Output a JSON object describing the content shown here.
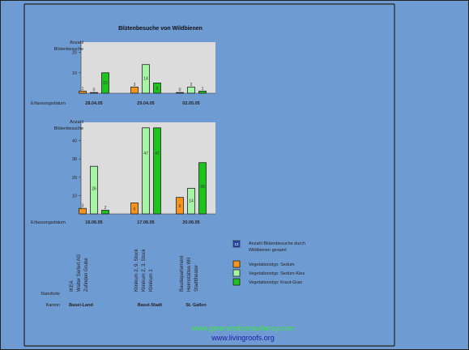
{
  "title": "Blütenbesuche von Wildbienen",
  "ylabel_top": "Anzahl\nBlütenbesuche",
  "ylabel_bottom": "Anzahl\nBlütenbesuche",
  "xlabel_prefix": "Erfassungsdatum",
  "standorte_label": "Standorte",
  "kanton_label": "Kanton",
  "kantons": [
    "Basel-Land",
    "Basel-Stadt",
    "St. Gallen"
  ],
  "standorte": [
    [
      "IKEA",
      "Walter Seifert AG",
      "Zufinden Grube"
    ],
    [
      "Klinikum 2, 9. Stock",
      "Klinikum 2, 3. Stock",
      "Klinikum 1"
    ],
    [
      "Baudepartement",
      "Heimstätten Wil",
      "Stadttheater"
    ]
  ],
  "legend": {
    "total_symbol": "12",
    "total_label": "Anzahl Blütenbesuche durch Wildbienen gesamt",
    "items": [
      {
        "label": "Vegetationstyp: Sedum",
        "color": "#f7941d"
      },
      {
        "label": "Vegetationstyp: Sedum-Kies",
        "color": "#a6f5a6"
      },
      {
        "label": "Vegetationstyp: Kraut-Gras",
        "color": "#1ec41e"
      }
    ]
  },
  "footer": {
    "line1": "www.greenroofconsultancy.com",
    "line2": "www.livingroofs.org"
  },
  "colors": {
    "sedum": "#f7941d",
    "sedum_kies": "#a6f5a6",
    "kraut_gras": "#1ec41e",
    "plot_bg": "#dcdcdc",
    "page_bg": "#6f9bd3"
  },
  "chart_data": [
    {
      "type": "bar",
      "title": "Blütenbesuche von Wildbienen",
      "ylabel": "Anzahl Blütenbesuche",
      "xlabel": "Erfassungsdatum",
      "ylim": [
        0,
        25
      ],
      "yticks": [
        10,
        20
      ],
      "categories": [
        "28.04.05",
        "29.04.05",
        "02.05.05"
      ],
      "series": [
        {
          "name": "Vegetationstyp: Sedum",
          "values": [
            1,
            3,
            0
          ]
        },
        {
          "name": "Vegetationstyp: Sedum-Kies",
          "values": [
            0,
            14,
            3
          ]
        },
        {
          "name": "Vegetationstyp: Kraut-Gras",
          "values": [
            10,
            5,
            1
          ]
        }
      ]
    },
    {
      "type": "bar",
      "ylabel": "Anzahl Blütenbesuche",
      "xlabel": "Erfassungsdatum",
      "ylim": [
        0,
        50
      ],
      "yticks": [
        10,
        20,
        30,
        40
      ],
      "categories": [
        "16.06.05",
        "17.06.05",
        "20.06.05"
      ],
      "series": [
        {
          "name": "Vegetationstyp: Sedum",
          "values": [
            3,
            6,
            9
          ]
        },
        {
          "name": "Vegetationstyp: Sedum-Kies",
          "values": [
            26,
            47,
            14
          ]
        },
        {
          "name": "Vegetationstyp: Kraut-Gras",
          "values": [
            2,
            47,
            28
          ]
        }
      ]
    }
  ]
}
